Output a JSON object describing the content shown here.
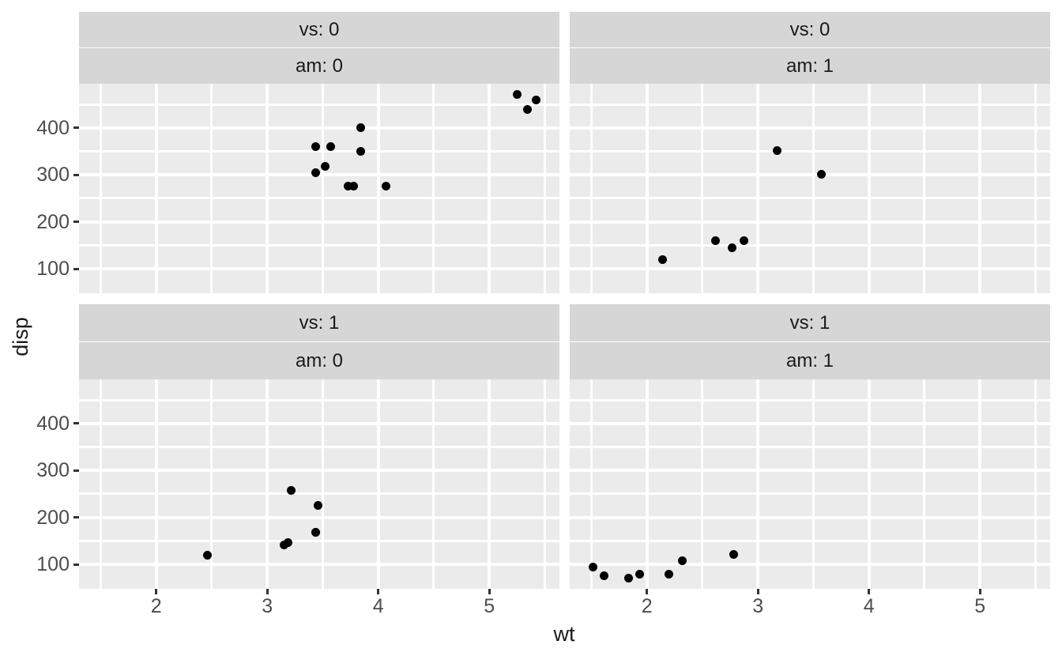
{
  "chart_data": {
    "type": "scatter",
    "title": "",
    "xlabel": "wt",
    "ylabel": "disp",
    "facet_by": [
      "vs",
      "am"
    ],
    "legend": "none",
    "grid": true,
    "x_domain": [
      1.305,
      5.632
    ],
    "y_domain": [
      48,
      494
    ],
    "x_ticks": [
      2,
      3,
      4,
      5
    ],
    "x_minor_ticks": [
      1.5,
      2.5,
      3.5,
      4.5,
      5.5
    ],
    "y_ticks": [
      100,
      200,
      300,
      400
    ],
    "y_minor_ticks": [
      150,
      250,
      350,
      450
    ],
    "colors": {
      "panel_bg": "#EBEBEB",
      "strip_bg": "#D6D6D6",
      "grid": "#FFFFFF",
      "point": "#000000",
      "tick_mark": "#333333",
      "tick_label": "#4D4D4D",
      "title_text": "#1A1A1A",
      "strip_text": "#1A1A1A"
    },
    "facets": [
      {
        "row": 0,
        "col": 0,
        "strip_labels": [
          "vs: 0",
          "am: 0"
        ],
        "points": [
          [
            3.44,
            360
          ],
          [
            3.57,
            360
          ],
          [
            3.52,
            318
          ],
          [
            3.435,
            304
          ],
          [
            3.73,
            275.8
          ],
          [
            3.78,
            275.8
          ],
          [
            4.07,
            275.8
          ],
          [
            3.84,
            350
          ],
          [
            3.845,
            400
          ],
          [
            5.25,
            472
          ],
          [
            5.424,
            460
          ],
          [
            5.345,
            440
          ]
        ]
      },
      {
        "row": 0,
        "col": 1,
        "strip_labels": [
          "vs: 0",
          "am: 1"
        ],
        "points": [
          [
            2.14,
            120.3
          ],
          [
            2.62,
            160
          ],
          [
            2.77,
            145
          ],
          [
            2.875,
            160
          ],
          [
            3.17,
            351
          ],
          [
            3.57,
            301
          ]
        ]
      },
      {
        "row": 1,
        "col": 0,
        "strip_labels": [
          "vs: 1",
          "am: 0"
        ],
        "points": [
          [
            2.465,
            120.1
          ],
          [
            3.15,
            140.8
          ],
          [
            3.19,
            146.7
          ],
          [
            3.215,
            258
          ],
          [
            3.44,
            167.6
          ],
          [
            3.44,
            167.6
          ],
          [
            3.46,
            225
          ]
        ]
      },
      {
        "row": 1,
        "col": 1,
        "strip_labels": [
          "vs: 1",
          "am: 1"
        ],
        "points": [
          [
            1.513,
            95.1
          ],
          [
            1.615,
            75.7
          ],
          [
            1.835,
            71.1
          ],
          [
            1.935,
            79
          ],
          [
            2.2,
            78.7
          ],
          [
            2.32,
            108
          ],
          [
            2.78,
            121
          ]
        ]
      }
    ]
  }
}
